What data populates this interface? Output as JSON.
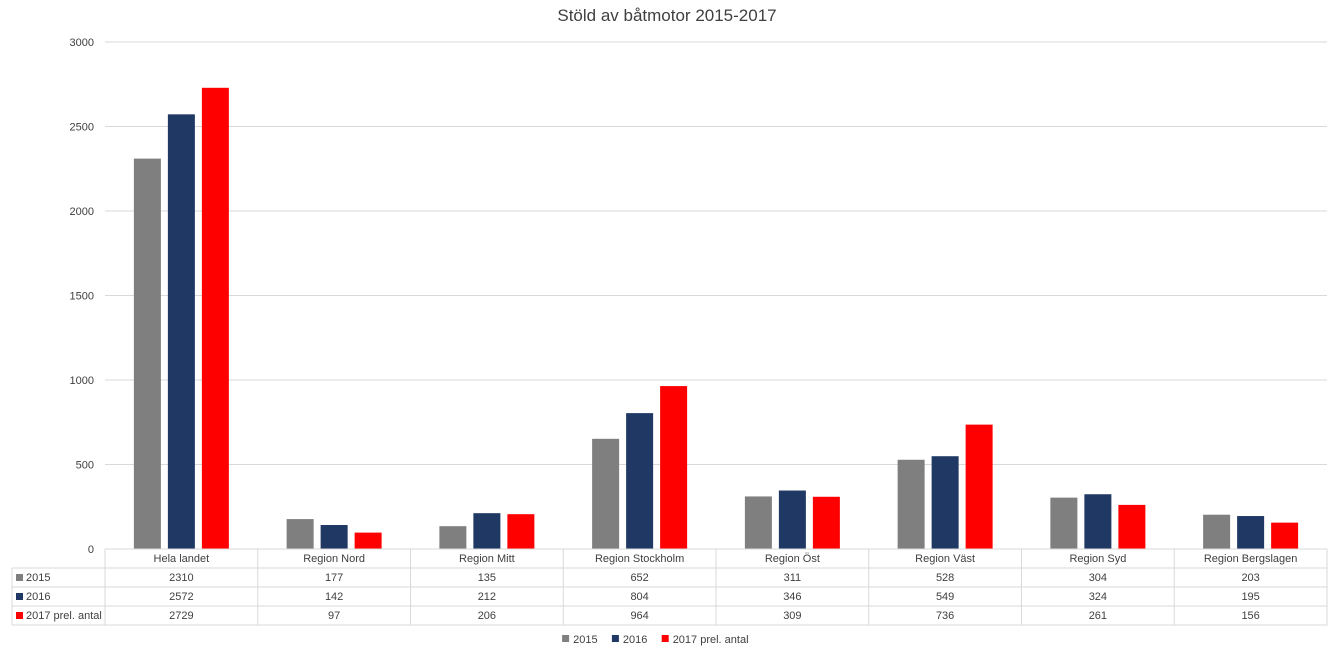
{
  "chart_data": {
    "type": "bar",
    "title": "Stöld av båtmotor 2015-2017",
    "categories": [
      "Hela landet",
      "Region Nord",
      "Region Mitt",
      "Region Stockholm",
      "Region Öst",
      "Region Väst",
      "Region Syd",
      "Region Bergslagen"
    ],
    "series": [
      {
        "name": "2015",
        "color": "#7f7f7f",
        "values": [
          2310,
          177,
          135,
          652,
          311,
          528,
          304,
          203
        ]
      },
      {
        "name": "2016",
        "color": "#1f3864",
        "values": [
          2572,
          142,
          212,
          804,
          346,
          549,
          324,
          195
        ]
      },
      {
        "name": "2017 prel. antal",
        "color": "#ff0000",
        "values": [
          2729,
          97,
          206,
          964,
          309,
          736,
          261,
          156
        ]
      }
    ],
    "ylim": [
      0,
      3000
    ],
    "yticks": [
      "0",
      "500",
      "1000",
      "1500",
      "2000",
      "2500",
      "3000"
    ],
    "grid": true,
    "data_table": true,
    "legend_position": "bottom"
  }
}
